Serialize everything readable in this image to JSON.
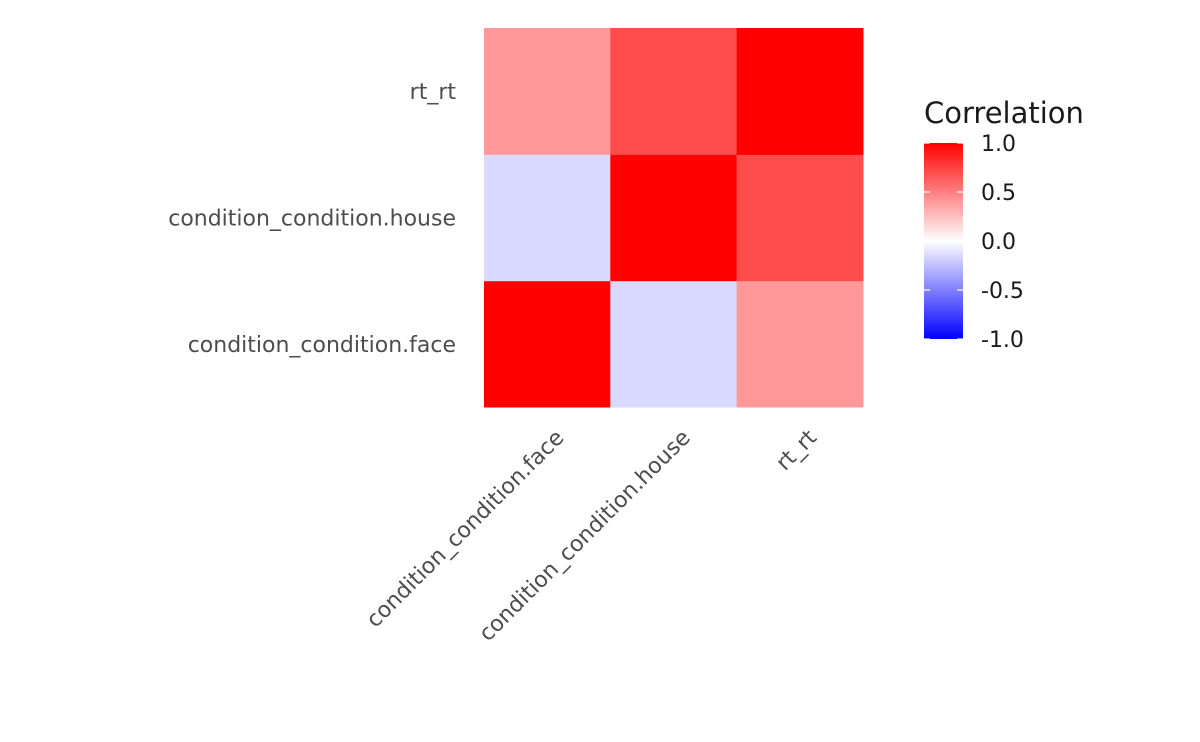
{
  "chart_data": {
    "type": "heatmap",
    "title": "",
    "xlabel": "",
    "ylabel": "",
    "x_categories": [
      "condition_condition.face",
      "condition_condition.house",
      "rt_rt"
    ],
    "y_categories": [
      "condition_condition.face",
      "condition_condition.house",
      "rt_rt"
    ],
    "matrix": [
      [
        1.0,
        -0.15,
        0.4
      ],
      [
        -0.15,
        1.0,
        0.7
      ],
      [
        0.4,
        0.7,
        1.0
      ]
    ],
    "legend": {
      "title": "Correlation",
      "limits": [
        -1.0,
        1.0
      ],
      "breaks": [
        1.0,
        0.5,
        0.0,
        -0.5,
        -1.0
      ],
      "break_labels": [
        "1.0",
        "0.5",
        "0.0",
        "-0.5",
        "-1.0"
      ],
      "low_color": "#0000ff",
      "mid_color": "#ffffff",
      "high_color": "#ff0000",
      "placement": "right"
    }
  }
}
